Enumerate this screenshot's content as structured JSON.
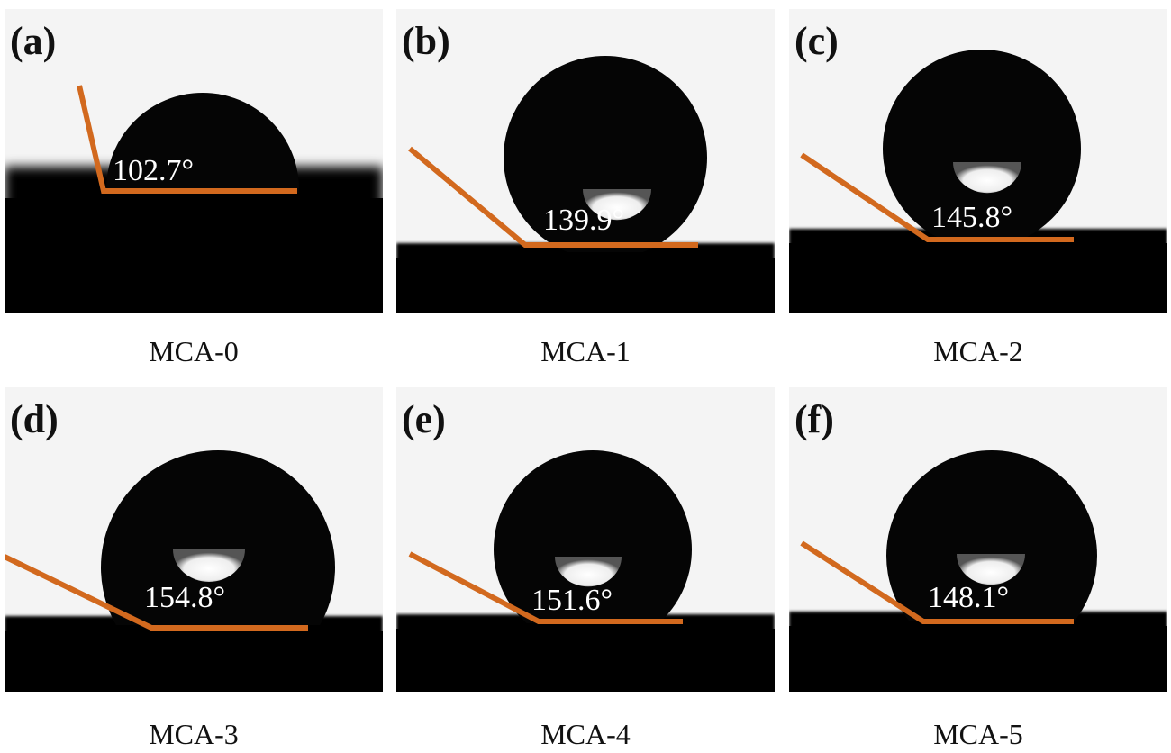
{
  "colors": {
    "angle_line": "#d2691e",
    "background": "#f4f4f4",
    "substrate": "#000000",
    "angle_text": "#ffffff"
  },
  "panels": [
    {
      "tag": "(a)",
      "angle": "102.7°",
      "caption": "MCA-0"
    },
    {
      "tag": "(b)",
      "angle": "139.9°",
      "caption": "MCA-1"
    },
    {
      "tag": "(c)",
      "angle": "145.8°",
      "caption": "MCA-2"
    },
    {
      "tag": "(d)",
      "angle": "154.8°",
      "caption": "MCA-3"
    },
    {
      "tag": "(e)",
      "angle": "151.6°",
      "caption": "MCA-4"
    },
    {
      "tag": "(f)",
      "angle": "148.1°",
      "caption": "MCA-5"
    }
  ]
}
